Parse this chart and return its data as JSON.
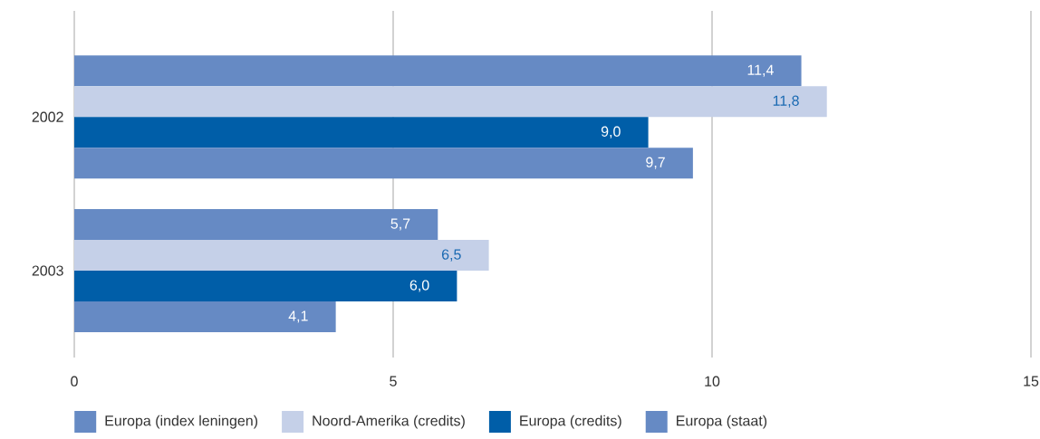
{
  "chart_data": {
    "type": "bar",
    "orientation": "horizontal",
    "categories": [
      "2002",
      "2003"
    ],
    "series": [
      {
        "name": "Europa (index leningen)",
        "color": "#668ac4",
        "values": [
          11.4,
          5.7
        ],
        "value_labels": [
          "11,4",
          "5,7"
        ]
      },
      {
        "name": "Noord-Amerika (credits)",
        "color": "#c5d0e8",
        "values": [
          11.8,
          6.5
        ],
        "value_labels": [
          "11,8",
          "6,5"
        ]
      },
      {
        "name": "Europa (credits)",
        "color": "#005ea8",
        "values": [
          9.0,
          6.0
        ],
        "value_labels": [
          "9,0",
          "6,0"
        ]
      },
      {
        "name": "Europa (staat)",
        "color": "#668ac4",
        "values": [
          9.7,
          4.1
        ],
        "value_labels": [
          "9,7",
          "4,1"
        ]
      }
    ],
    "xlim": [
      0,
      15
    ],
    "xticks": [
      0,
      5,
      10,
      15
    ],
    "grid": "x",
    "legend": "bottom"
  }
}
